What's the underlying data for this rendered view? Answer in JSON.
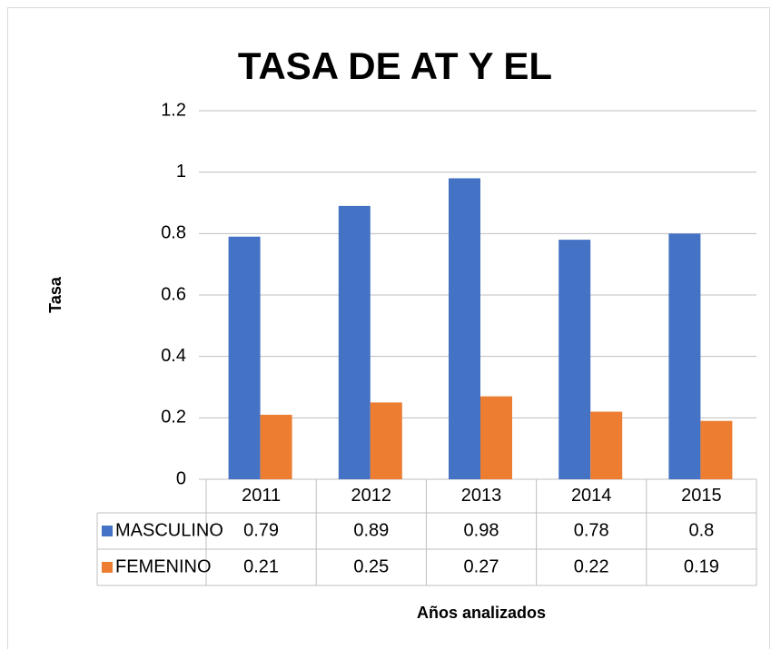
{
  "chart_data": {
    "type": "bar",
    "title": "TASA DE AT Y EL",
    "categories": [
      "2011",
      "2012",
      "2013",
      "2014",
      "2015"
    ],
    "series": [
      {
        "name": "MASCULINO",
        "color": "#4472c4",
        "values": [
          0.79,
          0.89,
          0.98,
          0.78,
          0.8
        ]
      },
      {
        "name": "FEMENINO",
        "color": "#ed7d31",
        "values": [
          0.21,
          0.25,
          0.27,
          0.22,
          0.19
        ]
      }
    ],
    "ylim": [
      0,
      1.2
    ],
    "yticks": [
      0,
      0.2,
      0.4,
      0.6,
      0.8,
      1,
      1.2
    ],
    "grid": true,
    "ylabel": "Tasa",
    "xlabel": "Años analizados"
  }
}
